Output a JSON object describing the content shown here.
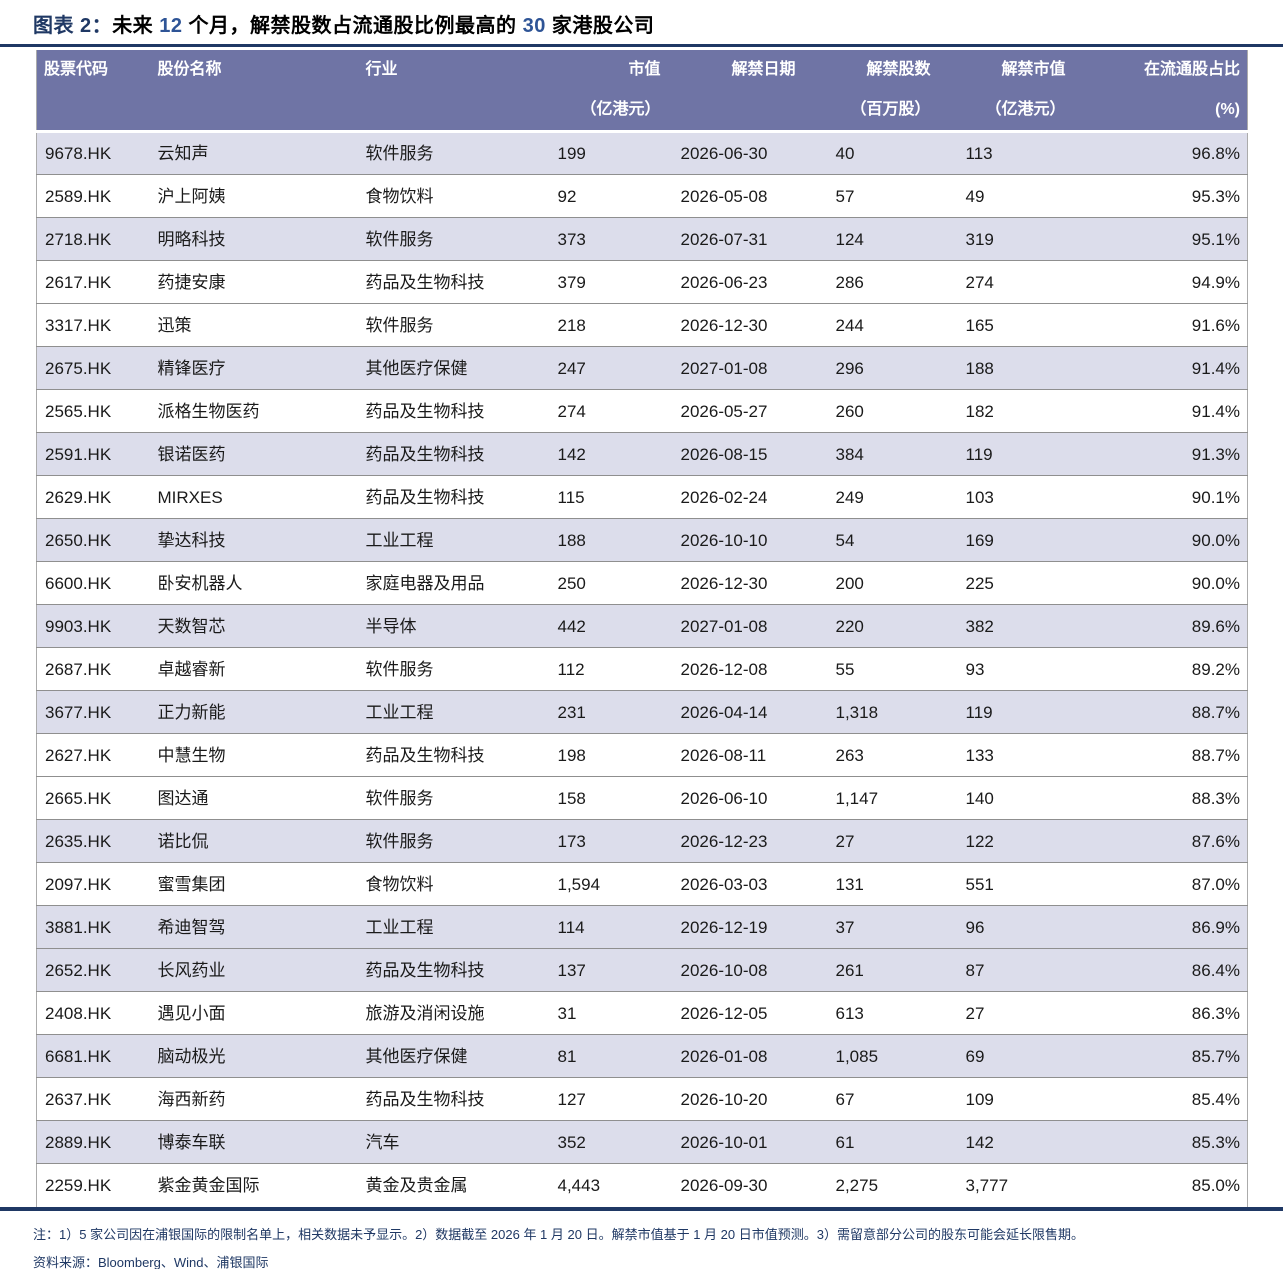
{
  "figure": {
    "label": "图表 2：",
    "title_segments": [
      {
        "text": "未来 ",
        "highlight": false
      },
      {
        "text": "12",
        "highlight": true
      },
      {
        "text": " 个月，解禁股数占流通股比例最高的 ",
        "highlight": false
      },
      {
        "text": "30",
        "highlight": true
      },
      {
        "text": " 家港股公司",
        "highlight": false
      }
    ]
  },
  "table": {
    "columns": [
      {
        "key": "code",
        "label": "股票代码",
        "unit": ""
      },
      {
        "key": "name",
        "label": "股份名称",
        "unit": ""
      },
      {
        "key": "industry",
        "label": "行业",
        "unit": ""
      },
      {
        "key": "mktcap",
        "label": "市值",
        "unit": "（亿港元）"
      },
      {
        "key": "date",
        "label": "解禁日期",
        "unit": ""
      },
      {
        "key": "shares",
        "label": "解禁股数",
        "unit": "（百万股）"
      },
      {
        "key": "value",
        "label": "解禁市值",
        "unit": "（亿港元）"
      },
      {
        "key": "pct",
        "label": "在流通股占比",
        "unit": "(%)"
      }
    ],
    "rows": [
      {
        "code": "9678.HK",
        "name": "云知声",
        "industry": "软件服务",
        "mktcap": "199",
        "date": "2026-06-30",
        "shares": "40",
        "value": "113",
        "pct": "96.8%",
        "shaded": true
      },
      {
        "code": "2589.HK",
        "name": "沪上阿姨",
        "industry": "食物饮料",
        "mktcap": "92",
        "date": "2026-05-08",
        "shares": "57",
        "value": "49",
        "pct": "95.3%",
        "shaded": false
      },
      {
        "code": "2718.HK",
        "name": "明略科技",
        "industry": "软件服务",
        "mktcap": "373",
        "date": "2026-07-31",
        "shares": "124",
        "value": "319",
        "pct": "95.1%",
        "shaded": true
      },
      {
        "code": "2617.HK",
        "name": "药捷安康",
        "industry": "药品及生物科技",
        "mktcap": "379",
        "date": "2026-06-23",
        "shares": "286",
        "value": "274",
        "pct": "94.9%",
        "shaded": false
      },
      {
        "code": "3317.HK",
        "name": "迅策",
        "industry": "软件服务",
        "mktcap": "218",
        "date": "2026-12-30",
        "shares": "244",
        "value": "165",
        "pct": "91.6%",
        "shaded": false
      },
      {
        "code": "2675.HK",
        "name": "精锋医疗",
        "industry": "其他医疗保健",
        "mktcap": "247",
        "date": "2027-01-08",
        "shares": "296",
        "value": "188",
        "pct": "91.4%",
        "shaded": true
      },
      {
        "code": "2565.HK",
        "name": "派格生物医药",
        "industry": "药品及生物科技",
        "mktcap": "274",
        "date": "2026-05-27",
        "shares": "260",
        "value": "182",
        "pct": "91.4%",
        "shaded": false
      },
      {
        "code": "2591.HK",
        "name": "银诺医药",
        "industry": "药品及生物科技",
        "mktcap": "142",
        "date": "2026-08-15",
        "shares": "384",
        "value": "119",
        "pct": "91.3%",
        "shaded": true
      },
      {
        "code": "2629.HK",
        "name": "MIRXES",
        "industry": "药品及生物科技",
        "mktcap": "115",
        "date": "2026-02-24",
        "shares": "249",
        "value": "103",
        "pct": "90.1%",
        "shaded": false
      },
      {
        "code": "2650.HK",
        "name": "挚达科技",
        "industry": "工业工程",
        "mktcap": "188",
        "date": "2026-10-10",
        "shares": "54",
        "value": "169",
        "pct": "90.0%",
        "shaded": true
      },
      {
        "code": "6600.HK",
        "name": "卧安机器人",
        "industry": "家庭电器及用品",
        "mktcap": "250",
        "date": "2026-12-30",
        "shares": "200",
        "value": "225",
        "pct": "90.0%",
        "shaded": false
      },
      {
        "code": "9903.HK",
        "name": "天数智芯",
        "industry": "半导体",
        "mktcap": "442",
        "date": "2027-01-08",
        "shares": "220",
        "value": "382",
        "pct": "89.6%",
        "shaded": true
      },
      {
        "code": "2687.HK",
        "name": "卓越睿新",
        "industry": "软件服务",
        "mktcap": "112",
        "date": "2026-12-08",
        "shares": "55",
        "value": "93",
        "pct": "89.2%",
        "shaded": false
      },
      {
        "code": "3677.HK",
        "name": "正力新能",
        "industry": "工业工程",
        "mktcap": "231",
        "date": "2026-04-14",
        "shares": "1,318",
        "value": "119",
        "pct": "88.7%",
        "shaded": true
      },
      {
        "code": "2627.HK",
        "name": "中慧生物",
        "industry": "药品及生物科技",
        "mktcap": "198",
        "date": "2026-08-11",
        "shares": "263",
        "value": "133",
        "pct": "88.7%",
        "shaded": false
      },
      {
        "code": "2665.HK",
        "name": "图达通",
        "industry": "软件服务",
        "mktcap": "158",
        "date": "2026-06-10",
        "shares": "1,147",
        "value": "140",
        "pct": "88.3%",
        "shaded": false
      },
      {
        "code": "2635.HK",
        "name": "诺比侃",
        "industry": "软件服务",
        "mktcap": "173",
        "date": "2026-12-23",
        "shares": "27",
        "value": "122",
        "pct": "87.6%",
        "shaded": true
      },
      {
        "code": "2097.HK",
        "name": "蜜雪集团",
        "industry": "食物饮料",
        "mktcap": "1,594",
        "date": "2026-03-03",
        "shares": "131",
        "value": "551",
        "pct": "87.0%",
        "shaded": false
      },
      {
        "code": "3881.HK",
        "name": "希迪智驾",
        "industry": "工业工程",
        "mktcap": "114",
        "date": "2026-12-19",
        "shares": "37",
        "value": "96",
        "pct": "86.9%",
        "shaded": true
      },
      {
        "code": "2652.HK",
        "name": "长风药业",
        "industry": "药品及生物科技",
        "mktcap": "137",
        "date": "2026-10-08",
        "shares": "261",
        "value": "87",
        "pct": "86.4%",
        "shaded": true
      },
      {
        "code": "2408.HK",
        "name": "遇见小面",
        "industry": "旅游及消闲设施",
        "mktcap": "31",
        "date": "2026-12-05",
        "shares": "613",
        "value": "27",
        "pct": "86.3%",
        "shaded": false
      },
      {
        "code": "6681.HK",
        "name": "脑动极光",
        "industry": "其他医疗保健",
        "mktcap": "81",
        "date": "2026-01-08",
        "shares": "1,085",
        "value": "69",
        "pct": "85.7%",
        "shaded": true
      },
      {
        "code": "2637.HK",
        "name": "海西新药",
        "industry": "药品及生物科技",
        "mktcap": "127",
        "date": "2026-10-20",
        "shares": "67",
        "value": "109",
        "pct": "85.4%",
        "shaded": false
      },
      {
        "code": "2889.HK",
        "name": "博泰车联",
        "industry": "汽车",
        "mktcap": "352",
        "date": "2026-10-01",
        "shares": "61",
        "value": "142",
        "pct": "85.3%",
        "shaded": true
      },
      {
        "code": "2259.HK",
        "name": "紫金黄金国际",
        "industry": "黄金及贵金属",
        "mktcap": "4,443",
        "date": "2026-09-30",
        "shares": "2,275",
        "value": "3,777",
        "pct": "85.0%",
        "shaded": false
      }
    ]
  },
  "footer": {
    "note": "注：1）5 家公司因在浦银国际的限制名单上，相关数据未予显示。2）数据截至 2026 年 1 月 20 日。解禁市值基于 1 月 20 日市值预测。3）需留意部分公司的股东可能会延长限售期。",
    "source": "资料来源：Bloomberg、Wind、浦银国际"
  },
  "colors": {
    "navy": "#1F3864",
    "title_number": "#2E5496",
    "header_bg": "#6F74A5",
    "shaded_row": "#DCDDEB"
  }
}
